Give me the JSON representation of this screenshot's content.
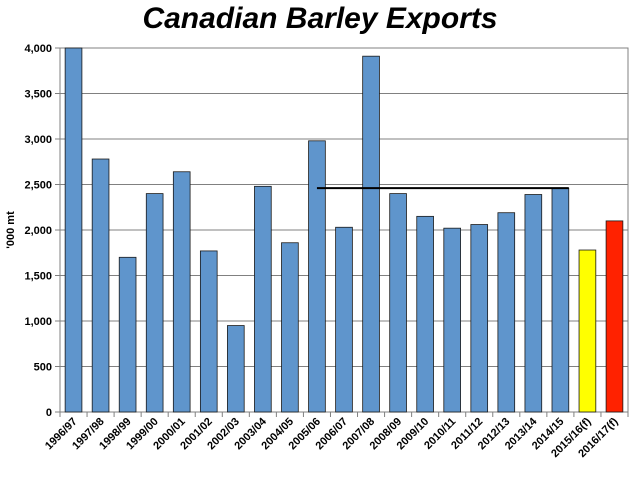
{
  "chart_data": {
    "type": "bar",
    "title": "Canadian Barley Exports",
    "ylabel": "'000 mt",
    "xlabel": "",
    "ylim": [
      0,
      4000
    ],
    "yticks": [
      0,
      500,
      1000,
      1500,
      2000,
      2500,
      3000,
      3500,
      4000
    ],
    "ytick_labels": [
      "0",
      "500",
      "1,000",
      "1,500",
      "2,000",
      "2,500",
      "3,000",
      "3,500",
      "4,000"
    ],
    "grid": true,
    "categories": [
      "1996/97",
      "1997/98",
      "1998/99",
      "1999/00",
      "2000/01",
      "2001/02",
      "2002/03",
      "2003/04",
      "2004/05",
      "2005/06",
      "2006/07",
      "2007/08",
      "2008/09",
      "2009/10",
      "2010/11",
      "2011/12",
      "2012/13",
      "2013/14",
      "2014/15",
      "2015/16(f)",
      "2016/17(f)"
    ],
    "values": [
      4000,
      2780,
      1700,
      2400,
      2640,
      1770,
      950,
      2480,
      1860,
      2980,
      2030,
      3910,
      2400,
      2150,
      2020,
      2060,
      2190,
      2390,
      2460,
      1780,
      2100
    ],
    "bar_colors": [
      "#5f95cc",
      "#5f95cc",
      "#5f95cc",
      "#5f95cc",
      "#5f95cc",
      "#5f95cc",
      "#5f95cc",
      "#5f95cc",
      "#5f95cc",
      "#5f95cc",
      "#5f95cc",
      "#5f95cc",
      "#5f95cc",
      "#5f95cc",
      "#5f95cc",
      "#5f95cc",
      "#5f95cc",
      "#5f95cc",
      "#5f95cc",
      "#ffff00",
      "#ff2200"
    ],
    "reference_line": {
      "value": 2460,
      "from_category": "2005/06",
      "to_category": "2014/15",
      "color": "#000000"
    }
  }
}
